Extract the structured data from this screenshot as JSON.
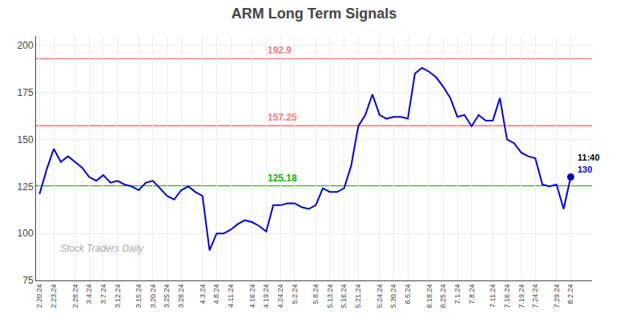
{
  "chart_data": {
    "type": "line",
    "title": "ARM Long Term Signals",
    "categories": [
      "2.20.24",
      null,
      "2.23.24",
      null,
      null,
      "2.28.24",
      null,
      "3.4.24",
      null,
      "3.7.24",
      null,
      "3.12.24",
      null,
      null,
      "3.15.24",
      null,
      "3.20.24",
      null,
      "3.25.24",
      null,
      "3.28.24",
      null,
      null,
      "4.3.24",
      null,
      "4.8.24",
      null,
      "4.11.24",
      null,
      null,
      "4.16.24",
      null,
      "4.19.24",
      null,
      "4.24.24",
      null,
      "5.2.24",
      null,
      null,
      "5.8.24",
      null,
      "5.13.24",
      null,
      "5.16.24",
      null,
      "5.21.24",
      null,
      null,
      "5.24.24",
      null,
      "5.30.24",
      null,
      "6.5.24",
      null,
      null,
      "6.18.24",
      null,
      "6.25.24",
      null,
      "7.1.24",
      null,
      "7.8.24",
      null,
      null,
      "7.11.24",
      null,
      "7.16.24",
      null,
      "7.19.24",
      null,
      "7.24.24",
      null,
      null,
      "7.29.24",
      null,
      "8.2.24"
    ],
    "values": [
      121,
      134,
      145,
      138,
      141,
      138,
      135,
      130,
      128,
      131,
      127,
      128,
      126,
      125,
      123,
      127,
      128,
      124,
      120,
      118,
      123,
      125,
      122,
      120,
      91,
      100,
      100,
      102,
      105,
      107,
      106,
      104,
      101,
      115,
      115,
      116,
      116,
      114,
      113,
      115,
      124,
      122,
      122,
      124,
      136,
      157,
      163,
      174,
      163,
      161,
      162,
      162,
      161,
      185,
      188,
      186,
      183,
      178,
      172,
      162,
      163,
      157,
      163,
      160,
      160,
      172,
      150,
      148,
      143,
      141,
      140,
      126,
      125,
      126,
      113,
      130
    ],
    "color": "#0000cc",
    "marker": "circle",
    "ylim": [
      75,
      205
    ],
    "yticks": [
      75,
      100,
      125,
      150,
      175,
      200
    ],
    "grid": true,
    "reference_lines": [
      {
        "value": 157.25,
        "color": "#f08080"
      },
      {
        "value": 192.9,
        "color": "#f08080"
      },
      {
        "value": 125.18,
        "color": "#00bb00"
      }
    ],
    "annotations": [
      {
        "text": "11:40",
        "color": "#000000"
      },
      {
        "text": "130",
        "color": "#0000cc"
      }
    ],
    "watermark": {
      "text": "Stock Traders Daily",
      "color": "#aaaaaa"
    }
  }
}
